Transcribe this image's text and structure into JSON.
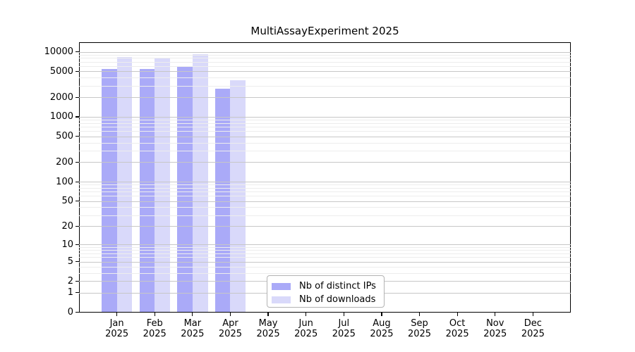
{
  "title": "MultiAssayExperiment 2025",
  "chart_data": {
    "type": "bar",
    "title": "MultiAssayExperiment 2025",
    "categories": [
      "Jan 2025",
      "Feb 2025",
      "Mar 2025",
      "Apr 2025",
      "May 2025",
      "Jun 2025",
      "Jul 2025",
      "Aug 2025",
      "Sep 2025",
      "Oct 2025",
      "Nov 2025",
      "Dec 2025"
    ],
    "series": [
      {
        "name": "Nb of distinct IPs",
        "color": "#aaaaf8",
        "values": [
          5500,
          5500,
          6000,
          2700,
          null,
          null,
          null,
          null,
          null,
          null,
          null,
          null
        ]
      },
      {
        "name": "Nb of downloads",
        "color": "#d9d9fa",
        "values": [
          8200,
          8000,
          9200,
          3650,
          null,
          null,
          null,
          null,
          null,
          null,
          null,
          null
        ]
      }
    ],
    "xlabel": "",
    "ylabel": "",
    "y_scale": "log1p",
    "ylim": [
      0,
      14000
    ],
    "y_major_ticks": [
      0,
      1,
      2,
      5,
      10,
      20,
      50,
      100,
      200,
      500,
      1000,
      2000,
      5000,
      10000
    ],
    "y_minor_multipliers": [
      3,
      4,
      6,
      7,
      8,
      9
    ],
    "grid": "horizontal-major-and-minor",
    "legend_position": "inside-bottom-center",
    "colors": {
      "bar_ips": "#aaaaf8",
      "bar_downloads": "#d9d9fa",
      "grid_major": "#c7c7c7",
      "grid_minor": "#ededed",
      "axis": "#000000",
      "text": "#000000",
      "legend_border": "#b3b3b3",
      "background": "#ffffff"
    }
  }
}
